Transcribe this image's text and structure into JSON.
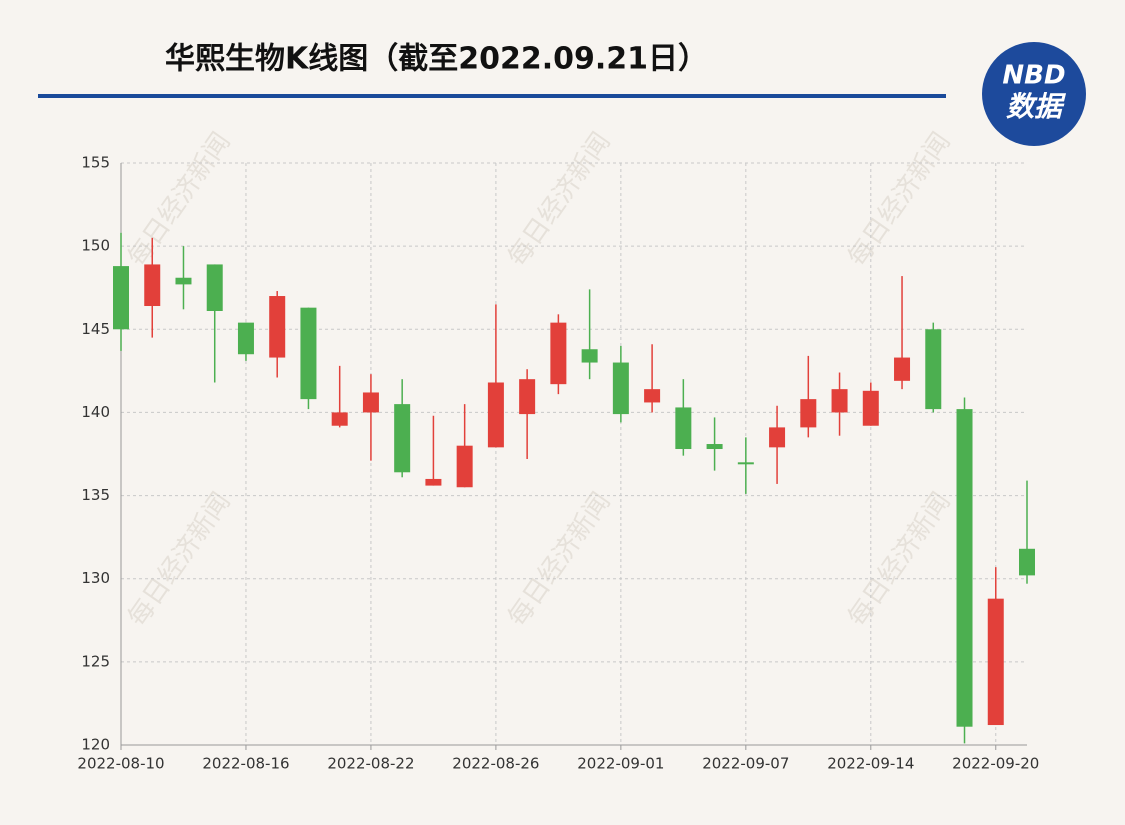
{
  "chart_data": {
    "type": "candlestick",
    "title": "华熙生物K线图（截至2022.09.21日）",
    "logo": {
      "top": "NBD",
      "bottom": "数据"
    },
    "watermark": "每日经济新闻",
    "categories": [
      "2022-08-10",
      null,
      null,
      null,
      "2022-08-16",
      null,
      null,
      null,
      "2022-08-22",
      null,
      null,
      null,
      "2022-08-26",
      null,
      null,
      null,
      "2022-09-01",
      null,
      null,
      null,
      "2022-09-07",
      null,
      null,
      null,
      "2022-09-14",
      null,
      null,
      null,
      "2022-09-20",
      null
    ],
    "open": [
      148.8,
      146.4,
      148.1,
      148.9,
      145.4,
      143.3,
      146.3,
      139.2,
      140.0,
      140.5,
      135.6,
      135.5,
      137.9,
      139.9,
      141.7,
      143.8,
      143.0,
      140.6,
      140.3,
      138.1,
      137.0,
      137.9,
      139.1,
      140.0,
      139.2,
      141.9,
      145.0,
      140.2,
      121.2,
      131.8
    ],
    "high": [
      150.8,
      150.5,
      150.0,
      148.9,
      145.4,
      147.3,
      146.3,
      142.8,
      142.3,
      142.0,
      139.8,
      140.5,
      146.5,
      142.6,
      145.9,
      147.4,
      144.0,
      144.1,
      142.0,
      139.7,
      138.5,
      140.4,
      143.4,
      142.4,
      141.8,
      148.2,
      145.4,
      140.9,
      130.7,
      135.9
    ],
    "low": [
      143.7,
      144.5,
      146.2,
      141.8,
      143.1,
      142.1,
      140.2,
      139.1,
      137.1,
      136.1,
      135.6,
      135.5,
      137.9,
      137.2,
      141.1,
      142.0,
      139.4,
      140.0,
      137.4,
      136.5,
      135.1,
      135.7,
      138.5,
      138.6,
      139.2,
      141.4,
      140.0,
      120.1,
      121.2,
      129.7
    ],
    "close": [
      145.0,
      148.9,
      147.7,
      146.1,
      143.5,
      147.0,
      140.8,
      140.0,
      141.2,
      136.4,
      136.0,
      138.0,
      141.8,
      142.0,
      145.4,
      143.0,
      139.9,
      141.4,
      137.8,
      137.8,
      136.9,
      139.1,
      140.8,
      141.4,
      141.3,
      143.3,
      140.2,
      121.1,
      128.8,
      130.2
    ],
    "up_color": "#e2403a",
    "down_color": "#4caf50",
    "ylim": [
      120,
      155
    ],
    "yticks": [
      120,
      125,
      130,
      135,
      140,
      145,
      150,
      155
    ],
    "grid": true
  }
}
